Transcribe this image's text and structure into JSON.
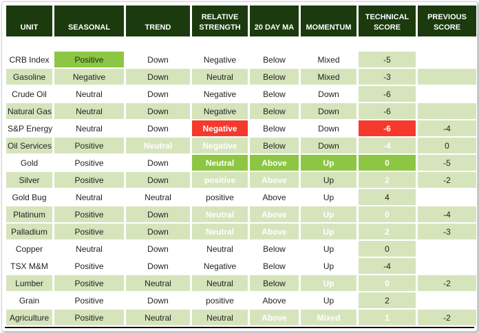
{
  "colors": {
    "header_bg": "#1b3a0e",
    "header_text": "#ffffff",
    "bright_green": "#8dc642",
    "light_green": "#d6e4bc",
    "red": "#f5392c",
    "body_text": "#1f1f1f"
  },
  "table": {
    "columns": [
      {
        "label": "UNIT"
      },
      {
        "label": "SEASONAL"
      },
      {
        "label": "TREND"
      },
      {
        "label": "RELATIVE STRENGTH"
      },
      {
        "label": "20 DAY MA"
      },
      {
        "label": "MOMENTUM"
      },
      {
        "label": "TECHNICAL SCORE"
      },
      {
        "label": "PREVIOUS SCORE"
      }
    ],
    "rows": [
      {
        "unit": "CRB Index",
        "shaded": false,
        "seasonal": {
          "t": "Positive",
          "s": "hl-green-dk"
        },
        "trend": {
          "t": "Down",
          "s": ""
        },
        "rs": {
          "t": "Negative",
          "s": ""
        },
        "ma": {
          "t": "Below",
          "s": ""
        },
        "momentum": {
          "t": "Mixed",
          "s": ""
        },
        "tech": {
          "t": "-5",
          "s": "score"
        },
        "prev": {
          "t": "",
          "s": ""
        }
      },
      {
        "unit": "Gasoline",
        "shaded": true,
        "seasonal": {
          "t": "Negative",
          "s": ""
        },
        "trend": {
          "t": "Down",
          "s": ""
        },
        "rs": {
          "t": "Neutral",
          "s": ""
        },
        "ma": {
          "t": "Below",
          "s": ""
        },
        "momentum": {
          "t": "Mixed",
          "s": ""
        },
        "tech": {
          "t": "-3",
          "s": "score"
        },
        "prev": {
          "t": "",
          "s": ""
        }
      },
      {
        "unit": "Crude Oil",
        "shaded": false,
        "seasonal": {
          "t": "Neutral",
          "s": ""
        },
        "trend": {
          "t": "Down",
          "s": ""
        },
        "rs": {
          "t": "Negative",
          "s": ""
        },
        "ma": {
          "t": "Below",
          "s": ""
        },
        "momentum": {
          "t": "Down",
          "s": ""
        },
        "tech": {
          "t": "-6",
          "s": "score"
        },
        "prev": {
          "t": "",
          "s": ""
        }
      },
      {
        "unit": "Natural Gas",
        "shaded": true,
        "seasonal": {
          "t": "Neutral",
          "s": ""
        },
        "trend": {
          "t": "Down",
          "s": ""
        },
        "rs": {
          "t": "Negative",
          "s": ""
        },
        "ma": {
          "t": "Below",
          "s": ""
        },
        "momentum": {
          "t": "Down",
          "s": ""
        },
        "tech": {
          "t": "-6",
          "s": "score"
        },
        "prev": {
          "t": "",
          "s": ""
        }
      },
      {
        "unit": "S&P Energy",
        "shaded": false,
        "seasonal": {
          "t": "Neutral",
          "s": ""
        },
        "trend": {
          "t": "Down",
          "s": ""
        },
        "rs": {
          "t": "Negative",
          "s": "hl-red"
        },
        "ma": {
          "t": "Below",
          "s": ""
        },
        "momentum": {
          "t": "Down",
          "s": ""
        },
        "tech": {
          "t": "-6",
          "s": "hl-red"
        },
        "prev": {
          "t": "-4",
          "s": "score"
        }
      },
      {
        "unit": "Oil Services",
        "shaded": true,
        "seasonal": {
          "t": "Positive",
          "s": "hl-green-dk"
        },
        "trend": {
          "t": "Neutral",
          "s": "hl-red"
        },
        "rs": {
          "t": "Negative",
          "s": "hl-red"
        },
        "ma": {
          "t": "Below",
          "s": ""
        },
        "momentum": {
          "t": "Down",
          "s": ""
        },
        "tech": {
          "t": "-4",
          "s": "hl-red"
        },
        "prev": {
          "t": "0",
          "s": "score"
        }
      },
      {
        "unit": "Gold",
        "shaded": false,
        "seasonal": {
          "t": "Positive",
          "s": ""
        },
        "trend": {
          "t": "Down",
          "s": ""
        },
        "rs": {
          "t": "Neutral",
          "s": "hl-green"
        },
        "ma": {
          "t": "Above",
          "s": "hl-green"
        },
        "momentum": {
          "t": "Up",
          "s": "hl-green"
        },
        "tech": {
          "t": "0",
          "s": "hl-green"
        },
        "prev": {
          "t": "-5",
          "s": "score"
        }
      },
      {
        "unit": "Silver",
        "shaded": true,
        "seasonal": {
          "t": "Positive",
          "s": ""
        },
        "trend": {
          "t": "Down",
          "s": ""
        },
        "rs": {
          "t": "positive",
          "s": "hl-green"
        },
        "ma": {
          "t": "Above",
          "s": "hl-green"
        },
        "momentum": {
          "t": "Up",
          "s": ""
        },
        "tech": {
          "t": "2",
          "s": "hl-green"
        },
        "prev": {
          "t": "-2",
          "s": "score"
        }
      },
      {
        "unit": "Gold Bug",
        "shaded": false,
        "seasonal": {
          "t": "Neutral",
          "s": ""
        },
        "trend": {
          "t": "Neutral",
          "s": ""
        },
        "rs": {
          "t": "positive",
          "s": ""
        },
        "ma": {
          "t": "Above",
          "s": ""
        },
        "momentum": {
          "t": "Up",
          "s": ""
        },
        "tech": {
          "t": "4",
          "s": "score"
        },
        "prev": {
          "t": "",
          "s": ""
        }
      },
      {
        "unit": "Platinum",
        "shaded": true,
        "seasonal": {
          "t": "Positive",
          "s": ""
        },
        "trend": {
          "t": "Down",
          "s": ""
        },
        "rs": {
          "t": "Neutral",
          "s": "hl-green"
        },
        "ma": {
          "t": "Above",
          "s": "hl-green"
        },
        "momentum": {
          "t": "Up",
          "s": "hl-green"
        },
        "tech": {
          "t": "0",
          "s": "hl-green"
        },
        "prev": {
          "t": "-4",
          "s": "score"
        }
      },
      {
        "unit": "Palladium",
        "shaded": true,
        "seasonal": {
          "t": "Positive",
          "s": ""
        },
        "trend": {
          "t": "Down",
          "s": ""
        },
        "rs": {
          "t": "Neutral",
          "s": "hl-green"
        },
        "ma": {
          "t": "Above",
          "s": "hl-green"
        },
        "momentum": {
          "t": "Up",
          "s": "hl-green"
        },
        "tech": {
          "t": "2",
          "s": "hl-green"
        },
        "prev": {
          "t": "-3",
          "s": "score"
        }
      },
      {
        "unit": "Copper",
        "shaded": false,
        "seasonal": {
          "t": "Neutral",
          "s": ""
        },
        "trend": {
          "t": "Down",
          "s": ""
        },
        "rs": {
          "t": "Neutral",
          "s": ""
        },
        "ma": {
          "t": "Below",
          "s": ""
        },
        "momentum": {
          "t": "Up",
          "s": ""
        },
        "tech": {
          "t": "0",
          "s": "score"
        },
        "prev": {
          "t": "",
          "s": ""
        }
      },
      {
        "unit": "TSX M&M",
        "shaded": false,
        "seasonal": {
          "t": "Positive",
          "s": ""
        },
        "trend": {
          "t": "Down",
          "s": ""
        },
        "rs": {
          "t": "Negative",
          "s": ""
        },
        "ma": {
          "t": "Below",
          "s": ""
        },
        "momentum": {
          "t": "Up",
          "s": ""
        },
        "tech": {
          "t": "-4",
          "s": "score"
        },
        "prev": {
          "t": "",
          "s": ""
        }
      },
      {
        "unit": "Lumber",
        "shaded": true,
        "seasonal": {
          "t": "Positive",
          "s": ""
        },
        "trend": {
          "t": "Neutral",
          "s": ""
        },
        "rs": {
          "t": "Neutral",
          "s": ""
        },
        "ma": {
          "t": "Below",
          "s": ""
        },
        "momentum": {
          "t": "Up",
          "s": "hl-green"
        },
        "tech": {
          "t": "0",
          "s": "hl-green"
        },
        "prev": {
          "t": "-2",
          "s": "score"
        }
      },
      {
        "unit": "Grain",
        "shaded": false,
        "seasonal": {
          "t": "Positive",
          "s": ""
        },
        "trend": {
          "t": "Down",
          "s": ""
        },
        "rs": {
          "t": "positive",
          "s": ""
        },
        "ma": {
          "t": "Above",
          "s": ""
        },
        "momentum": {
          "t": "Up",
          "s": ""
        },
        "tech": {
          "t": "2",
          "s": "score"
        },
        "prev": {
          "t": "",
          "s": ""
        }
      },
      {
        "unit": "Agriculture",
        "shaded": true,
        "seasonal": {
          "t": "Positive",
          "s": ""
        },
        "trend": {
          "t": "Neutral",
          "s": ""
        },
        "rs": {
          "t": "Neutral",
          "s": ""
        },
        "ma": {
          "t": "Above",
          "s": "hl-green"
        },
        "momentum": {
          "t": "Mixed",
          "s": "hl-green"
        },
        "tech": {
          "t": "1",
          "s": "hl-green"
        },
        "prev": {
          "t": "-2",
          "s": "score"
        }
      }
    ]
  },
  "chart_data": {
    "type": "table",
    "title": "Commodity technical score table",
    "columns": [
      "UNIT",
      "SEASONAL",
      "TREND",
      "RELATIVE STRENGTH",
      "20 DAY MA",
      "MOMENTUM",
      "TECHNICAL SCORE",
      "PREVIOUS SCORE"
    ],
    "rows": [
      [
        "CRB Index",
        "Positive",
        "Down",
        "Negative",
        "Below",
        "Mixed",
        -5,
        null
      ],
      [
        "Gasoline",
        "Negative",
        "Down",
        "Neutral",
        "Below",
        "Mixed",
        -3,
        null
      ],
      [
        "Crude Oil",
        "Neutral",
        "Down",
        "Negative",
        "Below",
        "Down",
        -6,
        null
      ],
      [
        "Natural Gas",
        "Neutral",
        "Down",
        "Negative",
        "Below",
        "Down",
        -6,
        null
      ],
      [
        "S&P Energy",
        "Neutral",
        "Down",
        "Negative",
        "Below",
        "Down",
        -6,
        -4
      ],
      [
        "Oil Services",
        "Positive",
        "Neutral",
        "Negative",
        "Below",
        "Down",
        -4,
        0
      ],
      [
        "Gold",
        "Positive",
        "Down",
        "Neutral",
        "Above",
        "Up",
        0,
        -5
      ],
      [
        "Silver",
        "Positive",
        "Down",
        "positive",
        "Above",
        "Up",
        2,
        -2
      ],
      [
        "Gold Bug",
        "Neutral",
        "Neutral",
        "positive",
        "Above",
        "Up",
        4,
        null
      ],
      [
        "Platinum",
        "Positive",
        "Down",
        "Neutral",
        "Above",
        "Up",
        0,
        -4
      ],
      [
        "Palladium",
        "Positive",
        "Down",
        "Neutral",
        "Above",
        "Up",
        2,
        -3
      ],
      [
        "Copper",
        "Neutral",
        "Down",
        "Neutral",
        "Below",
        "Up",
        0,
        null
      ],
      [
        "TSX M&M",
        "Positive",
        "Down",
        "Negative",
        "Below",
        "Up",
        -4,
        null
      ],
      [
        "Lumber",
        "Positive",
        "Neutral",
        "Neutral",
        "Below",
        "Up",
        0,
        -2
      ],
      [
        "Grain",
        "Positive",
        "Down",
        "positive",
        "Above",
        "Up",
        2,
        null
      ],
      [
        "Agriculture",
        "Positive",
        "Neutral",
        "Neutral",
        "Above",
        "Mixed",
        1,
        -2
      ]
    ]
  }
}
